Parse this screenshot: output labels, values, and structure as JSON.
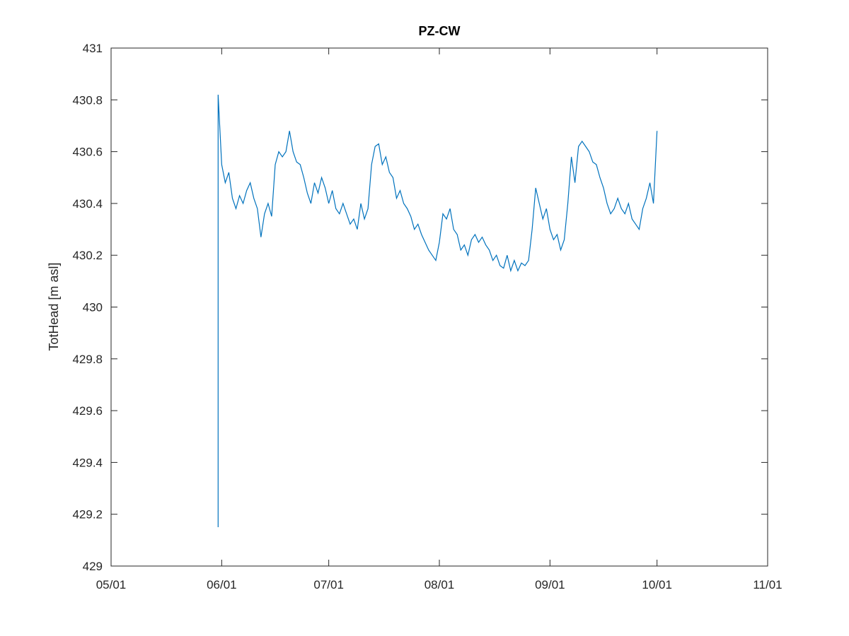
{
  "chart_data": {
    "type": "line",
    "title": "PZ-CW",
    "y_label": "TotHead [m asl]",
    "xlim": [
      "05/01",
      "11/01"
    ],
    "xticks": [
      "05/01",
      "06/01",
      "07/01",
      "08/01",
      "09/01",
      "10/01",
      "11/01"
    ],
    "ylim": [
      429,
      431
    ],
    "yticks": [
      429,
      429.2,
      429.4,
      429.6,
      429.8,
      430,
      430.2,
      430.4,
      430.6,
      430.8,
      431
    ],
    "x": [
      "05/31",
      "05/31",
      "06/01",
      "06/02",
      "06/03",
      "06/04",
      "06/05",
      "06/06",
      "06/07",
      "06/08",
      "06/09",
      "06/10",
      "06/11",
      "06/12",
      "06/13",
      "06/14",
      "06/15",
      "06/16",
      "06/17",
      "06/18",
      "06/19",
      "06/20",
      "06/21",
      "06/22",
      "06/23",
      "06/24",
      "06/25",
      "06/26",
      "06/27",
      "06/28",
      "06/29",
      "06/30",
      "07/01",
      "07/02",
      "07/03",
      "07/04",
      "07/05",
      "07/06",
      "07/07",
      "07/08",
      "07/09",
      "07/10",
      "07/11",
      "07/12",
      "07/13",
      "07/14",
      "07/15",
      "07/16",
      "07/17",
      "07/18",
      "07/19",
      "07/20",
      "07/21",
      "07/22",
      "07/23",
      "07/24",
      "07/25",
      "07/26",
      "07/27",
      "07/28",
      "07/29",
      "07/30",
      "07/31",
      "08/01",
      "08/02",
      "08/03",
      "08/04",
      "08/05",
      "08/06",
      "08/07",
      "08/08",
      "08/09",
      "08/10",
      "08/11",
      "08/12",
      "08/13",
      "08/14",
      "08/15",
      "08/16",
      "08/17",
      "08/18",
      "08/19",
      "08/20",
      "08/21",
      "08/22",
      "08/23",
      "08/24",
      "08/25",
      "08/26",
      "08/27",
      "08/28",
      "08/29",
      "08/30",
      "08/31",
      "09/01",
      "09/02",
      "09/03",
      "09/04",
      "09/05",
      "09/06",
      "09/07",
      "09/08",
      "09/09",
      "09/10",
      "09/11",
      "09/12",
      "09/13",
      "09/14",
      "09/15",
      "09/16",
      "09/17",
      "09/18",
      "09/19",
      "09/20",
      "09/21",
      "09/22",
      "09/23",
      "09/24",
      "09/25",
      "09/26",
      "09/27",
      "09/28",
      "09/29",
      "09/30",
      "10/01"
    ],
    "series": [
      {
        "name": "PZ-CW",
        "color": "#0072bd",
        "values": [
          429.15,
          430.82,
          430.55,
          430.48,
          430.52,
          430.42,
          430.38,
          430.43,
          430.4,
          430.45,
          430.48,
          430.42,
          430.38,
          430.27,
          430.36,
          430.4,
          430.35,
          430.55,
          430.6,
          430.58,
          430.6,
          430.68,
          430.6,
          430.56,
          430.55,
          430.5,
          430.44,
          430.4,
          430.48,
          430.44,
          430.5,
          430.46,
          430.4,
          430.45,
          430.38,
          430.36,
          430.4,
          430.36,
          430.32,
          430.34,
          430.3,
          430.4,
          430.34,
          430.38,
          430.55,
          430.62,
          430.63,
          430.55,
          430.58,
          430.52,
          430.5,
          430.42,
          430.45,
          430.4,
          430.38,
          430.35,
          430.3,
          430.32,
          430.28,
          430.25,
          430.22,
          430.2,
          430.18,
          430.25,
          430.36,
          430.34,
          430.38,
          430.3,
          430.28,
          430.22,
          430.24,
          430.2,
          430.26,
          430.28,
          430.25,
          430.27,
          430.24,
          430.22,
          430.18,
          430.2,
          430.16,
          430.15,
          430.2,
          430.14,
          430.18,
          430.14,
          430.17,
          430.16,
          430.18,
          430.3,
          430.46,
          430.4,
          430.34,
          430.38,
          430.3,
          430.26,
          430.28,
          430.22,
          430.26,
          430.4,
          430.58,
          430.48,
          430.62,
          430.64,
          430.62,
          430.6,
          430.56,
          430.55,
          430.5,
          430.46,
          430.4,
          430.36,
          430.38,
          430.42,
          430.38,
          430.36,
          430.4,
          430.34,
          430.32,
          430.3,
          430.38,
          430.42,
          430.48,
          430.4,
          430.68
        ]
      }
    ]
  }
}
